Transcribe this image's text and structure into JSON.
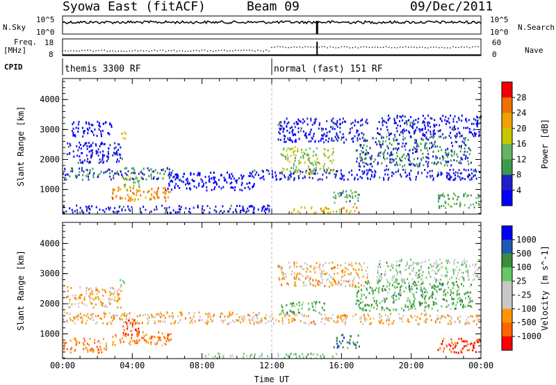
{
  "header": {
    "station": "Syowa East (fitACF)",
    "beam": "Beam 09",
    "date": "09/Dec/2011"
  },
  "status_panels": {
    "left_noise_label": "N.Sky",
    "left_noise_ticks": [
      "10^5",
      "10^0"
    ],
    "right_noise_label": "N.Search",
    "right_noise_ticks": [
      "10^5",
      "10^0"
    ],
    "left_freq_label_1": "Freq.",
    "left_freq_label_2": "[MHz]",
    "left_freq_ticks": [
      "18",
      "8"
    ],
    "right_nave_label": "Nave",
    "right_nave_ticks": [
      "60",
      "0"
    ],
    "cpid_label": "CPID",
    "cpid_segments": [
      {
        "name": "themis 3300 RF",
        "start_hour": 0
      },
      {
        "name": "normal (fast) 151 RF",
        "start_hour": 12
      }
    ],
    "cpid_change_hour": 12,
    "noise_gap_hour": 14.6
  },
  "colors": {
    "power": [
      "#0000ff",
      "#2020c8",
      "#3a9a4a",
      "#64b464",
      "#c8c800",
      "#f0a000",
      "#f07000",
      "#f00000"
    ],
    "velocity": [
      "#ff0000",
      "#ff6400",
      "#ff9600",
      "#c8c8c8",
      "#c8c8c8",
      "#64c864",
      "#3c8c3c",
      "#1e5ab4",
      "#0000ff"
    ]
  },
  "chart_data": [
    {
      "type": "heatmap",
      "title": "",
      "xlabel": "",
      "ylabel": "Slant Range [km]",
      "xlim_hours": [
        0,
        24
      ],
      "ylim": [
        180,
        4700
      ],
      "yticks": [
        1000,
        2000,
        3000,
        4000
      ],
      "xticks_hours": [
        0,
        4,
        8,
        12,
        16,
        20,
        24
      ],
      "colorbar_label": "Power [dB]",
      "colorbar_ticks": [
        "4",
        "8",
        "12",
        "16",
        "20",
        "24",
        "28"
      ],
      "echo_regions": [
        {
          "t0": 0.0,
          "t1": 6.8,
          "r0": 1350,
          "r1": 1750,
          "level": 2
        },
        {
          "t0": 0.2,
          "t1": 3.4,
          "r0": 1900,
          "r1": 2600,
          "level": 1
        },
        {
          "t0": 0.5,
          "t1": 2.8,
          "r0": 2800,
          "r1": 3300,
          "level": 0
        },
        {
          "t0": 3.2,
          "t1": 3.6,
          "r0": 2650,
          "r1": 2950,
          "level": 5
        },
        {
          "t0": 2.8,
          "t1": 6.2,
          "r0": 650,
          "r1": 1100,
          "level": 6
        },
        {
          "t0": 3.4,
          "t1": 4.4,
          "r0": 1000,
          "r1": 1500,
          "level": 4
        },
        {
          "t0": 6.0,
          "t1": 11.0,
          "r0": 1000,
          "r1": 1600,
          "level": 0
        },
        {
          "t0": 0.0,
          "t1": 12.0,
          "r0": 250,
          "r1": 500,
          "level": 1
        },
        {
          "t0": 10.8,
          "t1": 24.0,
          "r0": 1350,
          "r1": 1700,
          "level": 1
        },
        {
          "t0": 12.5,
          "t1": 15.5,
          "r0": 1550,
          "r1": 2450,
          "level": 4
        },
        {
          "t0": 12.3,
          "t1": 17.5,
          "r0": 2600,
          "r1": 3400,
          "level": 1
        },
        {
          "t0": 15.5,
          "t1": 17.0,
          "r0": 550,
          "r1": 1000,
          "level": 3
        },
        {
          "t0": 16.8,
          "t1": 23.5,
          "r0": 1800,
          "r1": 2800,
          "level": 2
        },
        {
          "t0": 18.0,
          "t1": 24.0,
          "r0": 2800,
          "r1": 3500,
          "level": 1
        },
        {
          "t0": 21.5,
          "t1": 24.0,
          "r0": 400,
          "r1": 900,
          "level": 3
        },
        {
          "t0": 13.0,
          "t1": 17.0,
          "r0": 250,
          "r1": 450,
          "level": 5
        }
      ]
    },
    {
      "type": "heatmap",
      "title": "",
      "xlabel": "Time UT",
      "ylabel": "Slant Range [km]",
      "xlim_hours": [
        0,
        24
      ],
      "ylim": [
        180,
        4700
      ],
      "yticks": [
        1000,
        2000,
        3000,
        4000
      ],
      "xticks_hours": [
        0,
        4,
        8,
        12,
        16,
        20,
        24
      ],
      "xtick_labels": [
        "00:00",
        "04:00",
        "08:00",
        "12:00",
        "16:00",
        "20:00",
        "00:00"
      ],
      "colorbar_label": "Velocity [m s^-1]",
      "colorbar_ticks": [
        "1000",
        "500",
        "100",
        "25",
        "-25",
        "-100",
        "-500",
        "-1000"
      ],
      "echo_regions": [
        {
          "t0": 0.0,
          "t1": 11.5,
          "r0": 1350,
          "r1": 1750,
          "level": 3
        },
        {
          "t0": 0.2,
          "t1": 3.4,
          "r0": 1900,
          "r1": 2600,
          "level": 3
        },
        {
          "t0": 3.2,
          "t1": 3.6,
          "r0": 2650,
          "r1": 2950,
          "level": 5
        },
        {
          "t0": 2.8,
          "t1": 6.2,
          "r0": 650,
          "r1": 1100,
          "level": 2
        },
        {
          "t0": 3.4,
          "t1": 4.4,
          "r0": 1000,
          "r1": 1500,
          "level": 1
        },
        {
          "t0": 0.0,
          "t1": 2.5,
          "r0": 400,
          "r1": 900,
          "level": 2
        },
        {
          "t0": 10.8,
          "t1": 24.0,
          "r0": 1350,
          "r1": 1700,
          "level": 3
        },
        {
          "t0": 12.5,
          "t1": 15.0,
          "r0": 1700,
          "r1": 2100,
          "level": 6
        },
        {
          "t0": 12.3,
          "t1": 17.5,
          "r0": 2600,
          "r1": 3400,
          "level": 3
        },
        {
          "t0": 15.5,
          "t1": 17.0,
          "r0": 550,
          "r1": 1000,
          "level": 7
        },
        {
          "t0": 16.8,
          "t1": 23.5,
          "r0": 1800,
          "r1": 2800,
          "level": 6
        },
        {
          "t0": 18.0,
          "t1": 24.0,
          "r0": 2800,
          "r1": 3500,
          "level": 5
        },
        {
          "t0": 21.5,
          "t1": 24.0,
          "r0": 400,
          "r1": 900,
          "level": 1
        },
        {
          "t0": 8.0,
          "t1": 16.0,
          "r0": 220,
          "r1": 380,
          "level": 5
        }
      ]
    }
  ]
}
